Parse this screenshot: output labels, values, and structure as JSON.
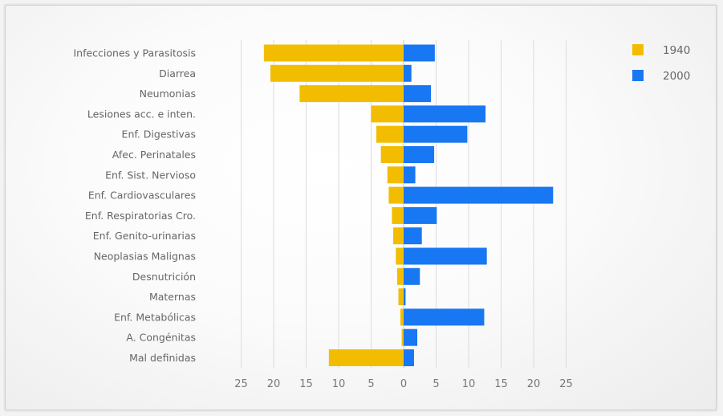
{
  "chart_data": {
    "type": "bar",
    "orientation": "horizontal-diverging",
    "categories": [
      "Infecciones y Parasitosis",
      "Diarrea",
      "Neumonias",
      "Lesiones acc. e inten.",
      "Enf. Digestivas",
      "Afec. Perinatales",
      "Enf. Sist. Nervioso",
      "Enf. Cardiovasculares",
      "Enf. Respiratorias Cro.",
      "Enf. Genito-urinarias",
      "Neoplasias Malignas",
      "Desnutrición",
      "Maternas",
      "Enf. Metabólicas",
      "A. Congénitas",
      "Mal definidas"
    ],
    "series": [
      {
        "name": "1940",
        "color": "#f2bd00",
        "side": "left",
        "values": [
          21.5,
          20.5,
          16.0,
          5.0,
          4.2,
          3.5,
          2.5,
          2.3,
          1.8,
          1.6,
          1.2,
          1.0,
          0.8,
          0.5,
          0.3,
          11.5
        ]
      },
      {
        "name": "2000",
        "color": "#1877f2",
        "side": "right",
        "values": [
          4.8,
          1.2,
          4.2,
          12.6,
          9.8,
          4.7,
          1.8,
          23.0,
          5.1,
          2.8,
          12.8,
          2.5,
          0.3,
          12.4,
          2.1,
          1.6
        ]
      }
    ],
    "x_ticks": [
      "25",
      "20",
      "15",
      "10",
      "5",
      "0",
      "5",
      "10",
      "15",
      "20",
      "25"
    ],
    "xlim": [
      -25,
      25
    ],
    "grid": true,
    "legend_position": "top-right",
    "title": "",
    "xlabel": "",
    "ylabel": ""
  }
}
